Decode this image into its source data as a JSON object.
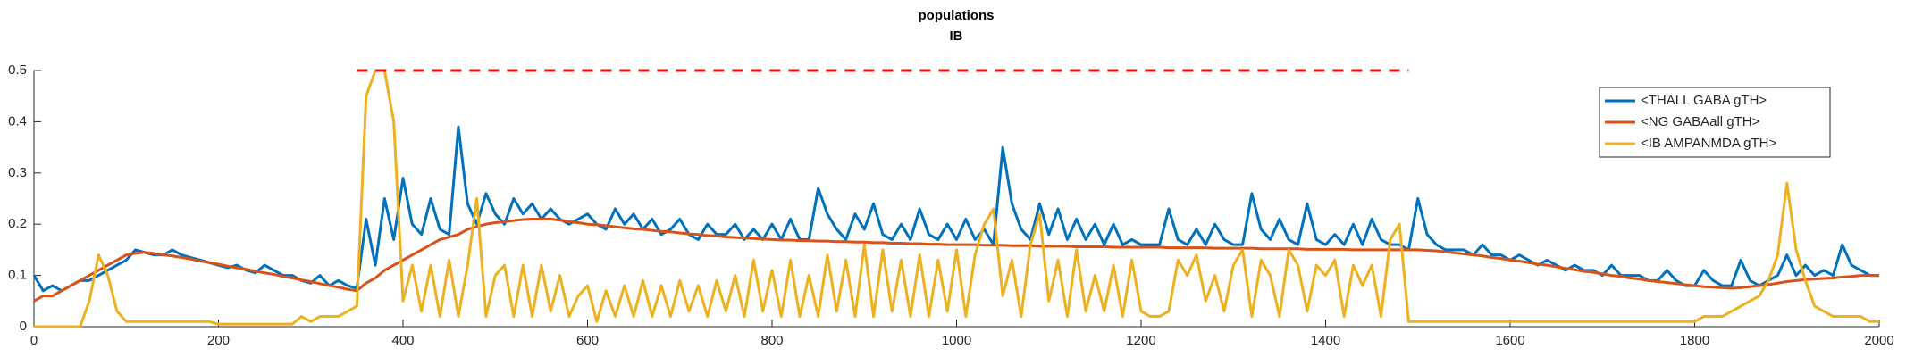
{
  "chart_data": {
    "type": "line",
    "title": "populations",
    "subtitle": "IB",
    "x": [
      0,
      10,
      20,
      30,
      40,
      50,
      60,
      70,
      80,
      90,
      100,
      110,
      120,
      130,
      140,
      150,
      160,
      170,
      180,
      190,
      200,
      210,
      220,
      230,
      240,
      250,
      260,
      270,
      280,
      290,
      300,
      310,
      320,
      330,
      340,
      350,
      360,
      370,
      380,
      390,
      400,
      410,
      420,
      430,
      440,
      450,
      460,
      470,
      480,
      490,
      500,
      510,
      520,
      530,
      540,
      550,
      560,
      570,
      580,
      590,
      600,
      610,
      620,
      630,
      640,
      650,
      660,
      670,
      680,
      690,
      700,
      710,
      720,
      730,
      740,
      750,
      760,
      770,
      780,
      790,
      800,
      810,
      820,
      830,
      840,
      850,
      860,
      870,
      880,
      890,
      900,
      910,
      920,
      930,
      940,
      950,
      960,
      970,
      980,
      990,
      1000,
      1010,
      1020,
      1030,
      1040,
      1050,
      1060,
      1070,
      1080,
      1090,
      1100,
      1110,
      1120,
      1130,
      1140,
      1150,
      1160,
      1170,
      1180,
      1190,
      1200,
      1210,
      1220,
      1230,
      1240,
      1250,
      1260,
      1270,
      1280,
      1290,
      1300,
      1310,
      1320,
      1330,
      1340,
      1350,
      1360,
      1370,
      1380,
      1390,
      1400,
      1410,
      1420,
      1430,
      1440,
      1450,
      1460,
      1470,
      1480,
      1490,
      1500,
      1510,
      1520,
      1530,
      1540,
      1550,
      1560,
      1570,
      1580,
      1590,
      1600,
      1610,
      1620,
      1630,
      1640,
      1650,
      1660,
      1670,
      1680,
      1690,
      1700,
      1710,
      1720,
      1730,
      1740,
      1750,
      1760,
      1770,
      1780,
      1790,
      1800,
      1810,
      1820,
      1830,
      1840,
      1850,
      1860,
      1870,
      1880,
      1890,
      1900,
      1910,
      1920,
      1930,
      1940,
      1950,
      1960,
      1970,
      1980,
      1990,
      2000
    ],
    "series": [
      {
        "name": "<THALL GABA gTH>",
        "color": "#0072bd",
        "values": [
          0.1,
          0.07,
          0.08,
          0.07,
          0.08,
          0.09,
          0.09,
          0.1,
          0.11,
          0.12,
          0.13,
          0.15,
          0.145,
          0.14,
          0.14,
          0.15,
          0.14,
          0.135,
          0.13,
          0.125,
          0.12,
          0.115,
          0.12,
          0.11,
          0.105,
          0.12,
          0.11,
          0.1,
          0.1,
          0.09,
          0.085,
          0.1,
          0.08,
          0.09,
          0.08,
          0.075,
          0.21,
          0.12,
          0.25,
          0.17,
          0.29,
          0.2,
          0.18,
          0.25,
          0.19,
          0.18,
          0.39,
          0.24,
          0.2,
          0.26,
          0.22,
          0.2,
          0.25,
          0.22,
          0.24,
          0.21,
          0.23,
          0.21,
          0.2,
          0.21,
          0.22,
          0.2,
          0.19,
          0.23,
          0.2,
          0.22,
          0.19,
          0.21,
          0.18,
          0.19,
          0.21,
          0.18,
          0.17,
          0.2,
          0.18,
          0.18,
          0.2,
          0.17,
          0.19,
          0.17,
          0.2,
          0.17,
          0.21,
          0.17,
          0.17,
          0.27,
          0.22,
          0.19,
          0.17,
          0.22,
          0.19,
          0.24,
          0.18,
          0.17,
          0.2,
          0.17,
          0.23,
          0.18,
          0.17,
          0.2,
          0.17,
          0.21,
          0.17,
          0.19,
          0.16,
          0.35,
          0.24,
          0.19,
          0.17,
          0.24,
          0.18,
          0.23,
          0.17,
          0.21,
          0.17,
          0.2,
          0.16,
          0.2,
          0.16,
          0.17,
          0.16,
          0.16,
          0.16,
          0.23,
          0.17,
          0.16,
          0.19,
          0.16,
          0.2,
          0.17,
          0.16,
          0.16,
          0.26,
          0.19,
          0.17,
          0.21,
          0.17,
          0.16,
          0.24,
          0.17,
          0.16,
          0.18,
          0.16,
          0.2,
          0.16,
          0.21,
          0.17,
          0.16,
          0.16,
          0.15,
          0.25,
          0.18,
          0.16,
          0.15,
          0.15,
          0.15,
          0.14,
          0.16,
          0.14,
          0.14,
          0.13,
          0.14,
          0.13,
          0.12,
          0.13,
          0.12,
          0.11,
          0.12,
          0.11,
          0.11,
          0.1,
          0.12,
          0.1,
          0.1,
          0.1,
          0.09,
          0.09,
          0.11,
          0.09,
          0.08,
          0.08,
          0.11,
          0.09,
          0.08,
          0.08,
          0.13,
          0.09,
          0.08,
          0.09,
          0.1,
          0.14,
          0.1,
          0.12,
          0.1,
          0.11,
          0.1,
          0.16,
          0.12,
          0.11,
          0.1,
          0.1
        ]
      },
      {
        "name": "<NG GABAall gTH>",
        "color": "#d95319",
        "values": [
          0.05,
          0.06,
          0.06,
          0.07,
          0.08,
          0.09,
          0.1,
          0.11,
          0.12,
          0.13,
          0.14,
          0.143,
          0.145,
          0.143,
          0.14,
          0.138,
          0.135,
          0.132,
          0.128,
          0.125,
          0.122,
          0.118,
          0.115,
          0.112,
          0.108,
          0.105,
          0.102,
          0.098,
          0.095,
          0.091,
          0.088,
          0.084,
          0.08,
          0.077,
          0.073,
          0.07,
          0.085,
          0.095,
          0.11,
          0.12,
          0.13,
          0.14,
          0.15,
          0.16,
          0.17,
          0.175,
          0.18,
          0.19,
          0.195,
          0.2,
          0.203,
          0.205,
          0.207,
          0.209,
          0.21,
          0.21,
          0.21,
          0.208,
          0.205,
          0.203,
          0.2,
          0.199,
          0.197,
          0.195,
          0.193,
          0.191,
          0.19,
          0.188,
          0.186,
          0.185,
          0.183,
          0.181,
          0.18,
          0.178,
          0.177,
          0.175,
          0.174,
          0.173,
          0.172,
          0.171,
          0.17,
          0.169,
          0.169,
          0.168,
          0.168,
          0.167,
          0.167,
          0.166,
          0.166,
          0.165,
          0.165,
          0.164,
          0.164,
          0.163,
          0.163,
          0.162,
          0.162,
          0.161,
          0.161,
          0.16,
          0.16,
          0.16,
          0.16,
          0.159,
          0.159,
          0.159,
          0.158,
          0.158,
          0.158,
          0.157,
          0.157,
          0.157,
          0.157,
          0.156,
          0.156,
          0.156,
          0.156,
          0.155,
          0.155,
          0.155,
          0.155,
          0.155,
          0.155,
          0.154,
          0.154,
          0.154,
          0.154,
          0.154,
          0.153,
          0.153,
          0.153,
          0.153,
          0.153,
          0.152,
          0.152,
          0.152,
          0.152,
          0.152,
          0.151,
          0.151,
          0.151,
          0.151,
          0.151,
          0.15,
          0.15,
          0.15,
          0.15,
          0.15,
          0.15,
          0.15,
          0.15,
          0.149,
          0.148,
          0.146,
          0.144,
          0.142,
          0.14,
          0.138,
          0.135,
          0.133,
          0.13,
          0.128,
          0.125,
          0.122,
          0.12,
          0.117,
          0.114,
          0.111,
          0.108,
          0.106,
          0.103,
          0.1,
          0.098,
          0.095,
          0.093,
          0.09,
          0.088,
          0.086,
          0.084,
          0.082,
          0.08,
          0.078,
          0.077,
          0.076,
          0.075,
          0.076,
          0.078,
          0.08,
          0.082,
          0.085,
          0.088,
          0.09,
          0.092,
          0.093,
          0.094,
          0.095,
          0.097,
          0.098,
          0.1,
          0.1,
          0.1
        ]
      },
      {
        "name": "<IB AMPANMDA gTH>",
        "color": "#edb120",
        "values": [
          0,
          0,
          0,
          0,
          0,
          0,
          0.05,
          0.14,
          0.1,
          0.03,
          0.01,
          0.01,
          0.01,
          0.01,
          0.01,
          0.01,
          0.01,
          0.01,
          0.01,
          0.01,
          0.005,
          0.005,
          0.005,
          0.005,
          0.005,
          0.005,
          0.005,
          0.005,
          0.005,
          0.02,
          0.01,
          0.02,
          0.02,
          0.02,
          0.03,
          0.04,
          0.45,
          0.5,
          0.5,
          0.4,
          0.05,
          0.12,
          0.03,
          0.12,
          0.02,
          0.13,
          0.02,
          0.12,
          0.25,
          0.02,
          0.1,
          0.12,
          0.02,
          0.12,
          0.02,
          0.12,
          0.03,
          0.1,
          0.02,
          0.06,
          0.08,
          0.01,
          0.07,
          0.02,
          0.08,
          0.02,
          0.09,
          0.02,
          0.08,
          0.02,
          0.09,
          0.03,
          0.08,
          0.02,
          0.09,
          0.03,
          0.1,
          0.02,
          0.13,
          0.03,
          0.11,
          0.02,
          0.13,
          0.02,
          0.1,
          0.02,
          0.14,
          0.03,
          0.13,
          0.02,
          0.16,
          0.02,
          0.15,
          0.03,
          0.13,
          0.02,
          0.14,
          0.02,
          0.13,
          0.03,
          0.15,
          0.02,
          0.14,
          0.2,
          0.23,
          0.06,
          0.13,
          0.02,
          0.16,
          0.22,
          0.05,
          0.13,
          0.02,
          0.15,
          0.03,
          0.1,
          0.03,
          0.12,
          0.02,
          0.13,
          0.03,
          0.02,
          0.02,
          0.03,
          0.13,
          0.1,
          0.14,
          0.05,
          0.1,
          0.03,
          0.12,
          0.15,
          0.02,
          0.13,
          0.1,
          0.02,
          0.15,
          0.12,
          0.03,
          0.12,
          0.1,
          0.13,
          0.02,
          0.12,
          0.08,
          0.12,
          0.02,
          0.17,
          0.2,
          0.01,
          0.01,
          0.01,
          0.01,
          0.01,
          0.01,
          0.01,
          0.01,
          0.01,
          0.01,
          0.01,
          0.01,
          0.01,
          0.01,
          0.01,
          0.01,
          0.01,
          0.01,
          0.01,
          0.01,
          0.01,
          0.01,
          0.01,
          0.01,
          0.01,
          0.01,
          0.01,
          0.01,
          0.01,
          0.01,
          0.01,
          0.01,
          0.02,
          0.02,
          0.02,
          0.03,
          0.04,
          0.05,
          0.06,
          0.09,
          0.14,
          0.28,
          0.15,
          0.09,
          0.04,
          0.03,
          0.02,
          0.02,
          0.02,
          0.02,
          0.01,
          0.01
        ]
      }
    ],
    "reference_line": {
      "x": [
        350,
        1490
      ],
      "y": [
        0.5,
        0.5
      ],
      "color": "#ff0000"
    },
    "xlim": [
      0,
      2000
    ],
    "xticks": [
      0,
      200,
      400,
      600,
      800,
      1000,
      1200,
      1400,
      1600,
      1800,
      2000
    ],
    "ylim": [
      0,
      0.5
    ],
    "yticks": [
      0,
      0.1,
      0.2,
      0.3,
      0.4,
      0.5
    ],
    "legend": "upper right"
  }
}
